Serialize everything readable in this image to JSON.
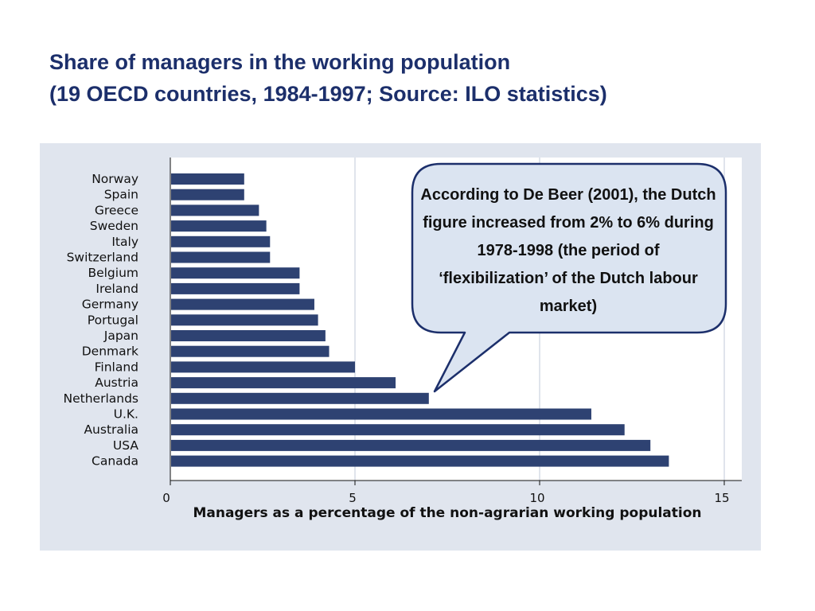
{
  "title": {
    "line1": "Share of managers in the working population",
    "line2": "(19 OECD countries, 1984-1997; Source: ILO statistics)"
  },
  "annotation": {
    "text": "According to De Beer (2001), the Dutch figure increased from 2% to 6% during 1978-1998 (the period of ‘flexibilization’ of the Dutch labour market)"
  },
  "colors": {
    "bar": "#2e4272",
    "panel_background": "#e0e5ee",
    "plot_background": "#ffffff",
    "bubble_fill": "#dbe4f1",
    "bubble_stroke": "#1c2f6b",
    "title": "#1c2f6b"
  },
  "chart_data": {
    "type": "bar",
    "orientation": "horizontal",
    "categories": [
      "Norway",
      "Spain",
      "Greece",
      "Sweden",
      "Italy",
      "Switzerland",
      "Belgium",
      "Ireland",
      "Germany",
      "Portugal",
      "Japan",
      "Denmark",
      "Finland",
      "Austria",
      "Netherlands",
      "U.K.",
      "Australia",
      "USA",
      "Canada"
    ],
    "values": [
      2.0,
      2.0,
      2.4,
      2.6,
      2.7,
      2.7,
      3.5,
      3.5,
      3.9,
      4.0,
      4.2,
      4.3,
      5.0,
      6.1,
      7.0,
      11.4,
      12.3,
      13.0,
      13.5
    ],
    "xlabel": "Managers as a percentage of the non-agrarian working population",
    "xlim": [
      0,
      15
    ],
    "xticks": [
      0,
      5,
      10,
      15
    ],
    "grid": true
  }
}
